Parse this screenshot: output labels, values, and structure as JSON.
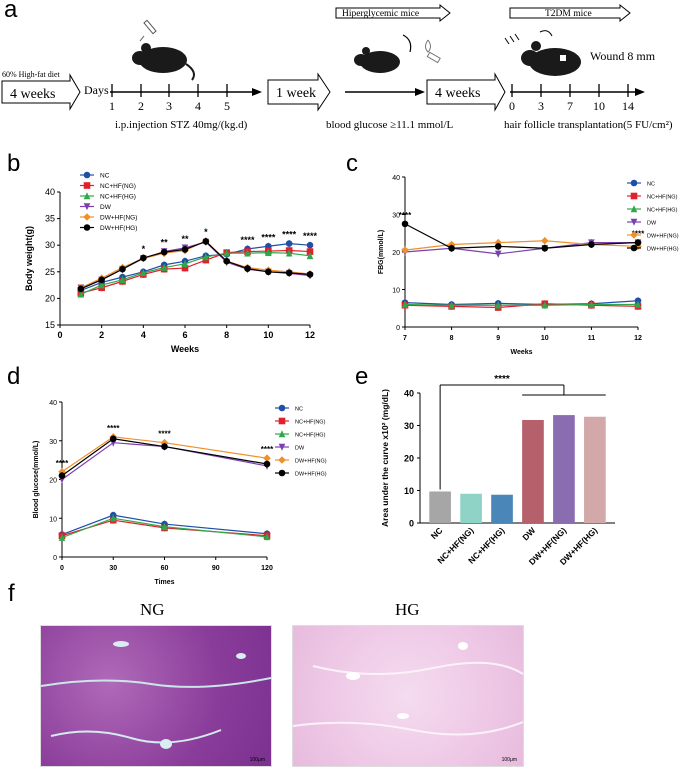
{
  "panel_labels": {
    "a": "a",
    "b": "b",
    "c": "c",
    "d": "d",
    "e": "e",
    "f": "f"
  },
  "panel_a": {
    "diet_label": "60% High-fat diet",
    "weeks1": "4 weeks",
    "days_label": "Days",
    "day_ticks": [
      "1",
      "2",
      "3",
      "4",
      "5"
    ],
    "injection_text": "i.p.injection STZ 40mg/(kg.d)",
    "week_box": "1 week",
    "hyper_label": "Hiperglycemic mice",
    "weeks2": "4 weeks",
    "glucose_text": "blood glucose ≥11.1 mmol/L",
    "t2dm_label": "T2DM mice",
    "wound_text": "Wound 8 mm",
    "day_ticks2": [
      "0",
      "3",
      "7",
      "10",
      "14"
    ],
    "transplant_text": "hair follicle transplantation(5 FU/cm²)"
  },
  "series_names": [
    "NC",
    "NC+HF(NG)",
    "NC+HF(HG)",
    "DW",
    "DW+HF(NG)",
    "DW+HF(HG)"
  ],
  "series_colors": [
    "#1f4fa8",
    "#e0202a",
    "#2ea84a",
    "#7b3fb0",
    "#f0902a",
    "#000000"
  ],
  "series_markers": [
    "circle",
    "square",
    "triangle-up",
    "triangle-down",
    "diamond",
    "circle"
  ],
  "chart_data": [
    {
      "id": "b",
      "type": "line",
      "ylabel": "Body weight(g)",
      "xlabel": "Weeks",
      "xlim": [
        0,
        12
      ],
      "ylim": [
        15,
        40
      ],
      "xticks": [
        "0",
        "2",
        "4",
        "6",
        "8",
        "10",
        "12"
      ],
      "yticks": [
        "15",
        "20",
        "25",
        "30",
        "35",
        "40"
      ],
      "x": [
        1,
        2,
        3,
        4,
        5,
        6,
        7,
        8,
        9,
        10,
        11,
        12
      ],
      "series": [
        {
          "name": "NC",
          "values": [
            21.5,
            23,
            24,
            25,
            26.3,
            27,
            28,
            28.3,
            29.3,
            29.8,
            30.3,
            30
          ]
        },
        {
          "name": "NC+HF(NG)",
          "values": [
            21,
            22,
            23.2,
            24.5,
            25.5,
            25.7,
            27.2,
            28.6,
            28.8,
            28.9,
            29,
            28.8
          ]
        },
        {
          "name": "NC+HF(HG)",
          "values": [
            20.8,
            22.5,
            23.5,
            24.8,
            25.8,
            26.5,
            27.8,
            28.5,
            28.5,
            28.6,
            28.5,
            28
          ]
        },
        {
          "name": "DW",
          "values": [
            22,
            23.5,
            25.5,
            27.5,
            28.8,
            29.5,
            30.6,
            26.8,
            25.5,
            25,
            24.7,
            24.3
          ]
        },
        {
          "name": "DW+HF(NG)",
          "values": [
            22,
            23.8,
            25.8,
            27.5,
            28.5,
            29,
            30.8,
            27,
            25.8,
            25.3,
            25,
            24.6
          ]
        },
        {
          "name": "DW+HF(HG)",
          "values": [
            21.8,
            23.5,
            25.5,
            27.6,
            28.7,
            29.2,
            30.7,
            27,
            25.6,
            25,
            24.8,
            24.5
          ]
        }
      ],
      "annotations": [
        {
          "x": 4,
          "text": "*"
        },
        {
          "x": 5,
          "text": "**"
        },
        {
          "x": 6,
          "text": "**"
        },
        {
          "x": 7,
          "text": "*"
        },
        {
          "x": 9,
          "text": "****"
        },
        {
          "x": 10,
          "text": "****"
        },
        {
          "x": 11,
          "text": "****"
        },
        {
          "x": 12,
          "text": "****"
        }
      ]
    },
    {
      "id": "c",
      "type": "line",
      "ylabel": "FBG(mmol/L)",
      "xlabel": "Weeks",
      "xlim": [
        7,
        12
      ],
      "ylim": [
        0,
        40
      ],
      "xticks": [
        "7",
        "8",
        "9",
        "10",
        "11",
        "12"
      ],
      "yticks": [
        "0",
        "10",
        "20",
        "30",
        "40"
      ],
      "x": [
        7,
        8,
        9,
        10,
        11,
        12
      ],
      "series": [
        {
          "name": "NC",
          "values": [
            6.5,
            6,
            6.3,
            6,
            6.2,
            7
          ]
        },
        {
          "name": "NC+HF(NG)",
          "values": [
            5.8,
            5.5,
            5.2,
            6.2,
            5.8,
            5.5
          ]
        },
        {
          "name": "NC+HF(HG)",
          "values": [
            6,
            5.8,
            5.8,
            5.8,
            6,
            6
          ]
        },
        {
          "name": "DW",
          "values": [
            20,
            21,
            19.5,
            21,
            22.5,
            22.5
          ]
        },
        {
          "name": "DW+HF(NG)",
          "values": [
            20.5,
            22,
            22.5,
            23,
            22,
            21.5
          ]
        },
        {
          "name": "DW+HF(HG)",
          "values": [
            27.5,
            21,
            21.5,
            21,
            22,
            22.5
          ]
        }
      ],
      "annotations": [
        {
          "x": 7,
          "text": "****"
        },
        {
          "x": 12,
          "text": "****"
        }
      ]
    },
    {
      "id": "d",
      "type": "line",
      "ylabel": "Blood glucose(mmol/L)",
      "xlabel": "Times",
      "xlim": [
        0,
        120
      ],
      "ylim": [
        0,
        40
      ],
      "xticks": [
        "0",
        "30",
        "60",
        "90",
        "120"
      ],
      "yticks": [
        "0",
        "10",
        "20",
        "30",
        "40"
      ],
      "x": [
        0,
        30,
        60,
        120
      ],
      "series": [
        {
          "name": "NC",
          "values": [
            5.8,
            10.8,
            8.5,
            6
          ]
        },
        {
          "name": "NC+HF(NG)",
          "values": [
            5.5,
            9.5,
            7.5,
            5.5
          ]
        },
        {
          "name": "NC+HF(HG)",
          "values": [
            5,
            10,
            7.8,
            5.2
          ]
        },
        {
          "name": "DW",
          "values": [
            20,
            29.5,
            28.5,
            23.5
          ]
        },
        {
          "name": "DW+HF(NG)",
          "values": [
            22,
            31,
            29.5,
            25.5
          ]
        },
        {
          "name": "DW+HF(HG)",
          "values": [
            21,
            30.5,
            28.5,
            24
          ]
        }
      ],
      "annotations": [
        {
          "x": 0,
          "text": "****"
        },
        {
          "x": 30,
          "text": "****"
        },
        {
          "x": 60,
          "text": "****"
        },
        {
          "x": 120,
          "text": "****"
        }
      ]
    },
    {
      "id": "e",
      "type": "bar",
      "ylabel": "Area under the curve x10² (mg/dL)",
      "ylim": [
        0,
        40
      ],
      "yticks": [
        "0",
        "10",
        "20",
        "30",
        "40"
      ],
      "categories": [
        "NC",
        "NC+HF(NG)",
        "NC+HF(HG)",
        "DW",
        "DW+HF(NG)",
        "DW+HF(HG)"
      ],
      "values": [
        9.7,
        9,
        8.7,
        31.7,
        33.2,
        32.7
      ],
      "colors": [
        "#a6a6a6",
        "#8fd3c6",
        "#4a86b8",
        "#b5606a",
        "#8a6cb0",
        "#d3a8a8"
      ],
      "significance": "****"
    }
  ],
  "panel_f": {
    "ng_title": "NG",
    "hg_title": "HG",
    "scale_ng": "100μm",
    "scale_hg": "100μm"
  }
}
